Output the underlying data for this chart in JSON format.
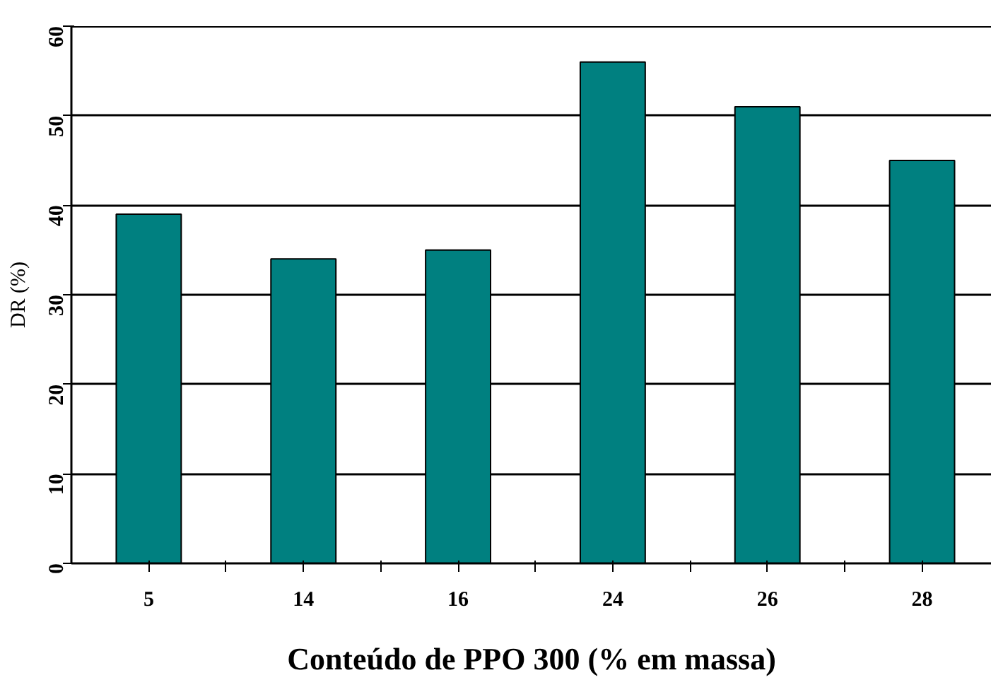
{
  "chart_data": {
    "type": "bar",
    "xlabel": "Conteúdo de PPO 300 (% em massa)",
    "ylabel": "DR (%)",
    "categories": [
      "5",
      "14",
      "16",
      "24",
      "26",
      "28"
    ],
    "values": [
      39,
      34,
      35,
      56,
      51,
      45
    ],
    "color": "#008080",
    "ylim": [
      0,
      60
    ],
    "yticks": [
      0,
      10,
      20,
      30,
      40,
      50,
      60
    ],
    "grid": "y"
  }
}
